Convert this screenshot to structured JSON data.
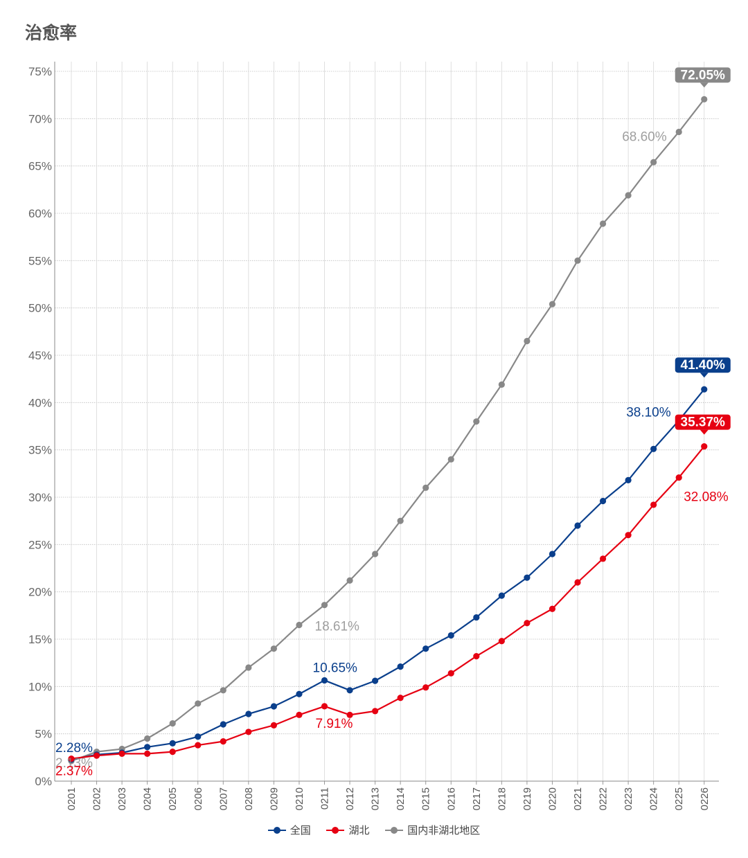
{
  "title": "治愈率",
  "chart_data": {
    "type": "line",
    "categories": [
      "0201",
      "0202",
      "0203",
      "0204",
      "0205",
      "0206",
      "0207",
      "0208",
      "0209",
      "0210",
      "0211",
      "0212",
      "0213",
      "0214",
      "0215",
      "0216",
      "0217",
      "0218",
      "0219",
      "0220",
      "0221",
      "0222",
      "0223",
      "0224",
      "0225",
      "0226"
    ],
    "ylim": [
      0,
      75
    ],
    "yticks": [
      0,
      5,
      10,
      15,
      20,
      25,
      30,
      35,
      40,
      45,
      50,
      55,
      60,
      65,
      70,
      75
    ],
    "ytick_labels": [
      "0%",
      "5%",
      "10%",
      "15%",
      "20%",
      "25%",
      "30%",
      "35%",
      "40%",
      "45%",
      "50%",
      "55%",
      "60%",
      "65%",
      "70%",
      "75%"
    ],
    "grid": true,
    "legend_position": "bottom",
    "series": [
      {
        "name": "国内非湖北地区",
        "color": "#888888",
        "values": [
          2.13,
          3.1,
          3.4,
          4.5,
          6.1,
          8.2,
          9.6,
          12.0,
          14.0,
          16.5,
          18.61,
          21.2,
          24.0,
          27.5,
          31.0,
          34.0,
          38.0,
          41.9,
          46.5,
          50.4,
          55.0,
          58.9,
          61.9,
          65.4,
          68.6,
          72.05
        ],
        "annotations": [
          {
            "index": 0,
            "text": "2.13%",
            "style": "plain"
          },
          {
            "index": 10,
            "text": "18.61%",
            "style": "plain"
          },
          {
            "index": 24,
            "text": "68.60%",
            "style": "plain"
          },
          {
            "index": 25,
            "text": "72.05%",
            "style": "box"
          }
        ]
      },
      {
        "name": "全国",
        "color": "#0a3f8c",
        "values": [
          2.28,
          2.8,
          3.0,
          3.6,
          4.0,
          4.7,
          6.0,
          7.1,
          7.9,
          9.2,
          10.65,
          9.6,
          10.6,
          12.1,
          14.0,
          15.4,
          17.3,
          19.6,
          21.5,
          24.0,
          27.0,
          29.6,
          31.8,
          35.1,
          38.1,
          41.4
        ],
        "annotations": [
          {
            "index": 0,
            "text": "2.28%",
            "style": "plain"
          },
          {
            "index": 10,
            "text": "10.65%",
            "style": "plain"
          },
          {
            "index": 24,
            "text": "38.10%",
            "style": "plain"
          },
          {
            "index": 25,
            "text": "41.40%",
            "style": "box"
          }
        ]
      },
      {
        "name": "湖北",
        "color": "#e60012",
        "values": [
          2.37,
          2.7,
          2.9,
          2.9,
          3.1,
          3.8,
          4.2,
          5.2,
          5.9,
          7.0,
          7.91,
          7.0,
          7.4,
          8.8,
          9.9,
          11.4,
          13.2,
          14.8,
          16.7,
          18.2,
          21.0,
          23.5,
          26.0,
          29.2,
          32.08,
          35.37
        ],
        "annotations": [
          {
            "index": 0,
            "text": "2.37%",
            "style": "plain"
          },
          {
            "index": 10,
            "text": "7.91%",
            "style": "plain"
          },
          {
            "index": 24,
            "text": "32.08%",
            "style": "plain"
          },
          {
            "index": 25,
            "text": "35.37%",
            "style": "box"
          }
        ]
      }
    ],
    "legend": [
      {
        "name": "全国",
        "color": "#0a3f8c"
      },
      {
        "name": "湖北",
        "color": "#e60012"
      },
      {
        "name": "国内非湖北地区",
        "color": "#888888"
      }
    ]
  }
}
